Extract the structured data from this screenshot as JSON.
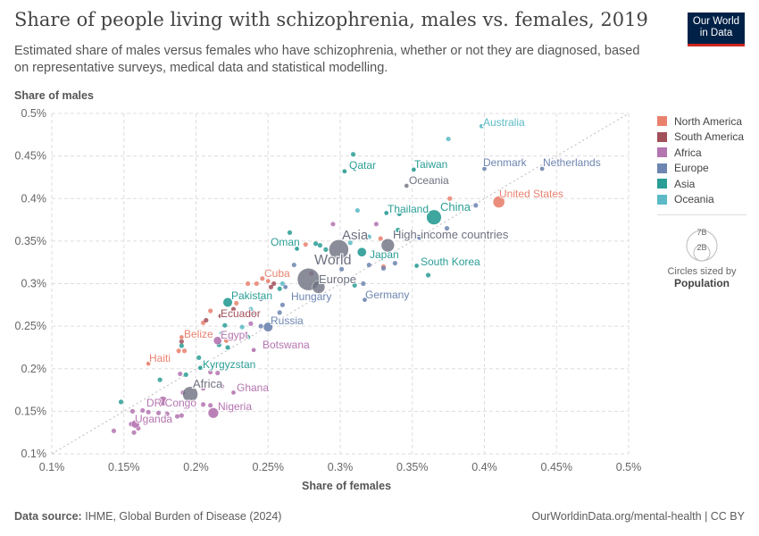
{
  "header": {
    "title": "Share of people living with schizophrenia, males vs. females, 2019",
    "subtitle": "Estimated share of males versus females who have schizophrenia, whether or not they are diagnosed, based on representative surveys, medical data and statistical modelling.",
    "logo": "Our World in Data"
  },
  "footer": {
    "source_label": "Data source:",
    "source": "IHME, Global Burden of Disease (2024)",
    "link": "OurWorldinData.org/mental-health | CC BY"
  },
  "chart_data": {
    "type": "scatter",
    "title": "Share of people living with schizophrenia, males vs. females, 2019",
    "xlabel": "Share of females",
    "ylabel": "Share of males",
    "xlim": [
      0.1,
      0.5
    ],
    "ylim": [
      0.1,
      0.5
    ],
    "xticks": [
      "0.1%",
      "0.15%",
      "0.2%",
      "0.25%",
      "0.3%",
      "0.35%",
      "0.4%",
      "0.45%",
      "0.5%"
    ],
    "yticks": [
      "0.1%",
      "0.15%",
      "0.2%",
      "0.25%",
      "0.3%",
      "0.35%",
      "0.4%",
      "0.45%",
      "0.5%"
    ],
    "grid": true,
    "diagonal_line": true,
    "legend_placement": "right",
    "colors": {
      "North America": "#e9816f",
      "South America": "#a2505a",
      "Africa": "#b474b0",
      "Europe": "#6d85b0",
      "Asia": "#2a9d95",
      "Oceania": "#5bbac6",
      "Aggregate": "#6e7180"
    },
    "legend": [
      "North America",
      "South America",
      "Africa",
      "Europe",
      "Asia",
      "Oceania"
    ],
    "size_legend": {
      "big": "7B",
      "small": "2B",
      "note": "Circles sized by",
      "variable": "Population"
    },
    "labeled_points": [
      {
        "name": "Australia",
        "x": 0.398,
        "y": 0.485,
        "region": "Oceania",
        "size": 1
      },
      {
        "name": "Denmark",
        "x": 0.4,
        "y": 0.435,
        "region": "Europe",
        "size": 1
      },
      {
        "name": "Netherlands",
        "x": 0.44,
        "y": 0.435,
        "region": "Europe",
        "size": 1
      },
      {
        "name": "United States",
        "x": 0.41,
        "y": 0.396,
        "region": "North America",
        "size": 2.5
      },
      {
        "name": "China",
        "x": 0.365,
        "y": 0.378,
        "region": "Asia",
        "size": 4
      },
      {
        "name": "Qatar",
        "x": 0.303,
        "y": 0.432,
        "region": "Asia",
        "size": 1
      },
      {
        "name": "Taiwan",
        "x": 0.351,
        "y": 0.434,
        "region": "Asia",
        "size": 1
      },
      {
        "name": "Oceania",
        "x": 0.346,
        "y": 0.415,
        "region": "Aggregate",
        "size": 1
      },
      {
        "name": "Thailand",
        "x": 0.332,
        "y": 0.383,
        "region": "Asia",
        "size": 1
      },
      {
        "name": "Oman",
        "x": 0.27,
        "y": 0.341,
        "region": "Asia",
        "size": 0.8
      },
      {
        "name": "Asia",
        "x": 0.299,
        "y": 0.34,
        "region": "Aggregate",
        "size": 7
      },
      {
        "name": "High-income countries",
        "x": 0.333,
        "y": 0.345,
        "region": "Aggregate",
        "size": 3.2
      },
      {
        "name": "World",
        "x": 0.278,
        "y": 0.305,
        "region": "Aggregate",
        "size": 9
      },
      {
        "name": "Europe",
        "x": 0.285,
        "y": 0.296,
        "region": "Aggregate",
        "size": 3
      },
      {
        "name": "Japan",
        "x": 0.315,
        "y": 0.337,
        "region": "Asia",
        "size": 1.5
      },
      {
        "name": "South Korea",
        "x": 0.353,
        "y": 0.321,
        "region": "Asia",
        "size": 1
      },
      {
        "name": "Germany",
        "x": 0.317,
        "y": 0.281,
        "region": "Europe",
        "size": 1
      },
      {
        "name": "Hungary",
        "x": 0.262,
        "y": 0.296,
        "region": "Europe",
        "size": 1
      },
      {
        "name": "Cuba",
        "x": 0.25,
        "y": 0.303,
        "region": "North America",
        "size": 1
      },
      {
        "name": "Pakistan",
        "x": 0.222,
        "y": 0.278,
        "region": "Asia",
        "size": 1.6
      },
      {
        "name": "Ecuador",
        "x": 0.217,
        "y": 0.262,
        "region": "South America",
        "size": 1
      },
      {
        "name": "Russia",
        "x": 0.25,
        "y": 0.249,
        "region": "Europe",
        "size": 1.6
      },
      {
        "name": "Belize",
        "x": 0.19,
        "y": 0.237,
        "region": "North America",
        "size": 1
      },
      {
        "name": "Egypt",
        "x": 0.215,
        "y": 0.233,
        "region": "Africa",
        "size": 1.2
      },
      {
        "name": "Botswana",
        "x": 0.24,
        "y": 0.222,
        "region": "Africa",
        "size": 1
      },
      {
        "name": "Haiti",
        "x": 0.167,
        "y": 0.206,
        "region": "North America",
        "size": 1
      },
      {
        "name": "Kyrgyzstan",
        "x": 0.203,
        "y": 0.201,
        "region": "Asia",
        "size": 1
      },
      {
        "name": "Africa",
        "x": 0.196,
        "y": 0.17,
        "region": "Aggregate",
        "size": 4.2
      },
      {
        "name": "Ghana",
        "x": 0.226,
        "y": 0.172,
        "region": "Africa",
        "size": 1
      },
      {
        "name": "DR Congo",
        "x": 0.177,
        "y": 0.162,
        "region": "Africa",
        "size": 1.6
      },
      {
        "name": "Nigeria",
        "x": 0.212,
        "y": 0.148,
        "region": "Africa",
        "size": 2
      },
      {
        "name": "Uganda",
        "x": 0.158,
        "y": 0.135,
        "region": "Africa",
        "size": 1.2
      }
    ],
    "other_points": [
      [
        0.375,
        0.47,
        "Oceania"
      ],
      [
        0.309,
        0.452,
        "Asia"
      ],
      [
        0.394,
        0.392,
        "Europe"
      ],
      [
        0.376,
        0.4,
        "North America"
      ],
      [
        0.312,
        0.386,
        "Oceania"
      ],
      [
        0.295,
        0.37,
        "Africa"
      ],
      [
        0.325,
        0.37,
        "Africa"
      ],
      [
        0.341,
        0.382,
        "Asia"
      ],
      [
        0.34,
        0.363,
        "Asia"
      ],
      [
        0.32,
        0.355,
        "Oceania"
      ],
      [
        0.355,
        0.354,
        "Europe"
      ],
      [
        0.374,
        0.365,
        "Europe"
      ],
      [
        0.307,
        0.348,
        "Oceania"
      ],
      [
        0.328,
        0.353,
        "North America"
      ],
      [
        0.276,
        0.346,
        "North America"
      ],
      [
        0.265,
        0.36,
        "Asia"
      ],
      [
        0.283,
        0.347,
        "Asia"
      ],
      [
        0.286,
        0.345,
        "Asia"
      ],
      [
        0.29,
        0.34,
        "Asia"
      ],
      [
        0.32,
        0.322,
        "Europe"
      ],
      [
        0.33,
        0.32,
        "North America"
      ],
      [
        0.33,
        0.318,
        "Europe"
      ],
      [
        0.338,
        0.324,
        "Europe"
      ],
      [
        0.301,
        0.317,
        "Europe"
      ],
      [
        0.316,
        0.3,
        "Europe"
      ],
      [
        0.31,
        0.298,
        "Asia"
      ],
      [
        0.361,
        0.31,
        "Asia"
      ],
      [
        0.268,
        0.322,
        "Europe"
      ],
      [
        0.28,
        0.312,
        "Africa"
      ],
      [
        0.246,
        0.306,
        "North America"
      ],
      [
        0.242,
        0.3,
        "North America"
      ],
      [
        0.236,
        0.3,
        "North America"
      ],
      [
        0.254,
        0.3,
        "South America"
      ],
      [
        0.252,
        0.296,
        "South America"
      ],
      [
        0.258,
        0.294,
        "Asia"
      ],
      [
        0.26,
        0.3,
        "Oceania"
      ],
      [
        0.245,
        0.282,
        "Europe"
      ],
      [
        0.228,
        0.277,
        "North America"
      ],
      [
        0.226,
        0.27,
        "South America"
      ],
      [
        0.238,
        0.27,
        "Oceania"
      ],
      [
        0.24,
        0.266,
        "Europe"
      ],
      [
        0.26,
        0.275,
        "Europe"
      ],
      [
        0.258,
        0.266,
        "Europe"
      ],
      [
        0.21,
        0.268,
        "North America"
      ],
      [
        0.205,
        0.254,
        "North America"
      ],
      [
        0.207,
        0.257,
        "South America"
      ],
      [
        0.22,
        0.251,
        "Asia"
      ],
      [
        0.232,
        0.249,
        "Oceania"
      ],
      [
        0.245,
        0.25,
        "Europe"
      ],
      [
        0.238,
        0.253,
        "Africa"
      ],
      [
        0.218,
        0.242,
        "Asia"
      ],
      [
        0.221,
        0.233,
        "North America"
      ],
      [
        0.216,
        0.228,
        "Asia"
      ],
      [
        0.222,
        0.225,
        "Asia"
      ],
      [
        0.236,
        0.237,
        "Asia"
      ],
      [
        0.19,
        0.232,
        "South America"
      ],
      [
        0.19,
        0.227,
        "Asia"
      ],
      [
        0.188,
        0.221,
        "North America"
      ],
      [
        0.192,
        0.221,
        "North America"
      ],
      [
        0.202,
        0.213,
        "Asia"
      ],
      [
        0.189,
        0.194,
        "Africa"
      ],
      [
        0.193,
        0.193,
        "Asia"
      ],
      [
        0.175,
        0.187,
        "Asia"
      ],
      [
        0.21,
        0.196,
        "Africa"
      ],
      [
        0.215,
        0.195,
        "Africa"
      ],
      [
        0.218,
        0.179,
        "Africa"
      ],
      [
        0.205,
        0.177,
        "Africa"
      ],
      [
        0.191,
        0.172,
        "Africa"
      ],
      [
        0.148,
        0.161,
        "Asia"
      ],
      [
        0.156,
        0.15,
        "Africa"
      ],
      [
        0.163,
        0.151,
        "Africa"
      ],
      [
        0.167,
        0.149,
        "Africa"
      ],
      [
        0.174,
        0.148,
        "Africa"
      ],
      [
        0.18,
        0.147,
        "Africa"
      ],
      [
        0.187,
        0.144,
        "Africa"
      ],
      [
        0.19,
        0.145,
        "Africa"
      ],
      [
        0.193,
        0.155,
        "Africa"
      ],
      [
        0.205,
        0.158,
        "Africa"
      ],
      [
        0.21,
        0.157,
        "Africa"
      ],
      [
        0.167,
        0.141,
        "Africa"
      ],
      [
        0.155,
        0.135,
        "Africa"
      ],
      [
        0.157,
        0.125,
        "Africa"
      ],
      [
        0.143,
        0.127,
        "Africa"
      ],
      [
        0.16,
        0.13,
        "Africa"
      ]
    ]
  }
}
